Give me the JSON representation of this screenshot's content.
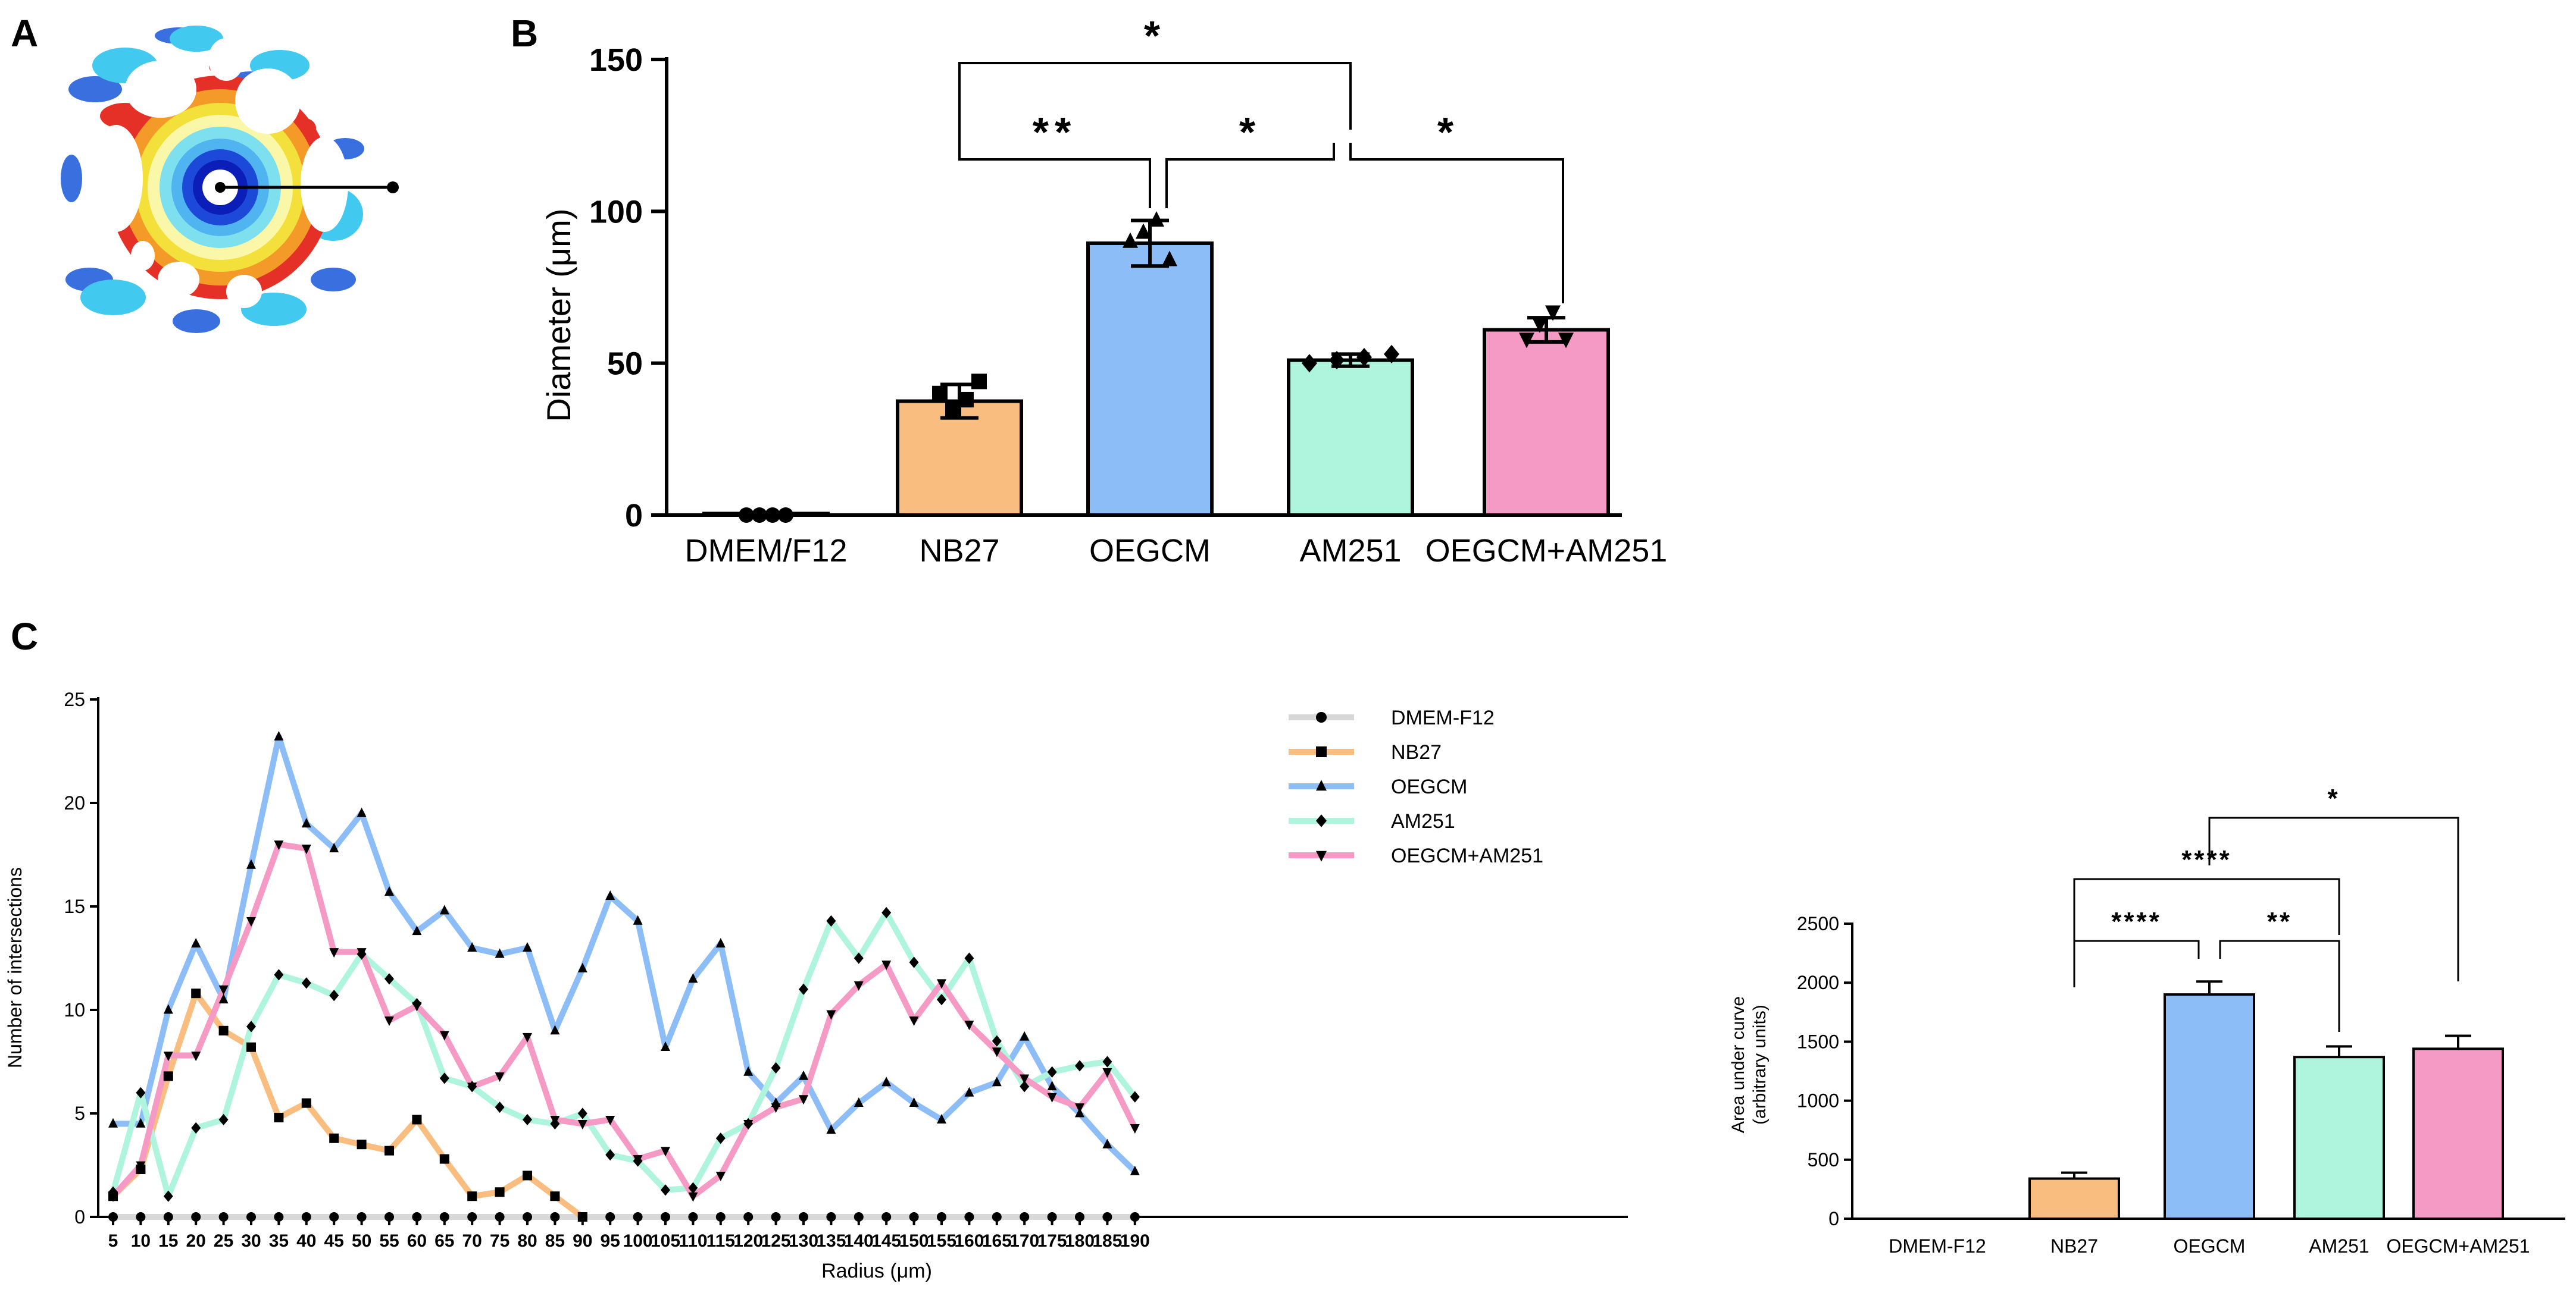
{
  "panels": {
    "a": "A",
    "b": "B",
    "c": "C"
  },
  "colors": {
    "dmem": "#d8d8d8",
    "nb27": "#f8bd7f",
    "oegcm": "#8dbdf6",
    "am251": "#aff4dc",
    "combo": "#f599c5"
  },
  "chart_data": [
    {
      "id": "panelB",
      "type": "bar",
      "title": "",
      "ylabel": "Diameter (μm)",
      "xlabel": "",
      "ylim": [
        0,
        150
      ],
      "yticks": [
        0,
        50,
        100,
        150
      ],
      "categories": [
        "DMEM/F12",
        "NB27",
        "OEGCM",
        "AM251",
        "OEGCM+AM251"
      ],
      "values": [
        0.5,
        37.5,
        89.5,
        51,
        61
      ],
      "errors": [
        0,
        5.5,
        7.5,
        2,
        4
      ],
      "points": [
        [
          0,
          0,
          0,
          0
        ],
        [
          40,
          35,
          38,
          44
        ],
        [
          90,
          93,
          97,
          84
        ],
        [
          50,
          51,
          52,
          53
        ],
        [
          58,
          63,
          67,
          58
        ]
      ],
      "significance": [
        {
          "from": 1,
          "to": 3,
          "label": "*"
        },
        {
          "from": 1,
          "to": 2,
          "label": "**"
        },
        {
          "from": 2,
          "to": 3,
          "label": "*"
        },
        {
          "from": 3,
          "to": 4,
          "label": "*"
        }
      ]
    },
    {
      "id": "panelC",
      "type": "line",
      "xlabel": "Radius (μm)",
      "ylabel": "Number of intersections",
      "ylim": [
        0,
        25
      ],
      "yticks": [
        0,
        5,
        10,
        15,
        20,
        25
      ],
      "x": [
        5,
        10,
        15,
        20,
        25,
        30,
        35,
        40,
        45,
        50,
        55,
        60,
        65,
        70,
        75,
        80,
        85,
        90,
        95,
        100,
        105,
        110,
        115,
        120,
        125,
        130,
        135,
        140,
        145,
        150,
        155,
        160,
        165,
        170,
        175,
        180,
        185,
        190
      ],
      "xtick_labels": [
        "5",
        "10",
        "15",
        "20",
        "25",
        "30",
        "35",
        "40",
        "45",
        "50",
        "55",
        "60",
        "65",
        "70",
        "75",
        "80",
        "85",
        "90",
        "95",
        "100",
        "105",
        "110",
        "115",
        "120",
        "125",
        "130",
        "135",
        "140",
        "145",
        "150",
        "155",
        "160",
        "165",
        "170",
        "175",
        "180",
        "185",
        "190"
      ],
      "series": [
        {
          "name": "DMEM-F12",
          "marker": "circle",
          "values": [
            0,
            0,
            0,
            0,
            0,
            0,
            0,
            0,
            0,
            0,
            0,
            0,
            0,
            0,
            0,
            0,
            0,
            0,
            0,
            0,
            0,
            0,
            0,
            0,
            0,
            0,
            0,
            0,
            0,
            0,
            0,
            0,
            0,
            0,
            0,
            0,
            0,
            0
          ]
        },
        {
          "name": "NB27",
          "marker": "square",
          "values": [
            1,
            2.3,
            6.8,
            10.8,
            9,
            8.2,
            4.8,
            5.5,
            3.8,
            3.5,
            3.2,
            4.7,
            2.8,
            1,
            1.2,
            2,
            1,
            0,
            0,
            0,
            0,
            0,
            0,
            0,
            0,
            0,
            0,
            0,
            0,
            0,
            0,
            0,
            0,
            0,
            0,
            0,
            0,
            0
          ]
        },
        {
          "name": "OEGCM",
          "marker": "triangle-up",
          "values": [
            4.5,
            4.5,
            10,
            13.2,
            10.5,
            17,
            23.2,
            19,
            17.8,
            19.5,
            15.7,
            13.8,
            14.8,
            13,
            12.7,
            13,
            9,
            12,
            15.5,
            14.3,
            8.2,
            11.5,
            13.2,
            7,
            5.5,
            6.8,
            4.2,
            5.5,
            6.5,
            5.5,
            4.7,
            6,
            6.5,
            8.7,
            6.3,
            5,
            3.5,
            2.2
          ]
        },
        {
          "name": "AM251",
          "marker": "diamond",
          "values": [
            1.2,
            6,
            1,
            4.3,
            4.7,
            9.2,
            11.7,
            11.3,
            10.7,
            12.7,
            11.5,
            10.3,
            6.7,
            6.3,
            5.3,
            4.7,
            4.5,
            5,
            3,
            2.7,
            1.3,
            1.4,
            3.8,
            4.5,
            7.2,
            11,
            14.3,
            12.5,
            14.7,
            12.3,
            10.5,
            12.5,
            8.5,
            6.3,
            7,
            7.3,
            7.5,
            5.8
          ]
        },
        {
          "name": "OEGCM+AM251",
          "marker": "triangle-down",
          "values": [
            1,
            2.5,
            7.8,
            7.8,
            11,
            14.3,
            18,
            17.8,
            12.8,
            12.8,
            9.5,
            10.2,
            8.8,
            6.3,
            6.8,
            8.7,
            4.7,
            4.5,
            4.7,
            2.8,
            3.2,
            1,
            2,
            4.5,
            5.3,
            5.7,
            9.8,
            11.2,
            12.2,
            9.5,
            11.3,
            9.3,
            8,
            6.7,
            5.8,
            5.3,
            7,
            4.3
          ]
        }
      ]
    },
    {
      "id": "panelC-inset",
      "type": "bar",
      "xlabel": "",
      "ylabel": "Area under curve",
      "ylabel2": "(arbitrary units)",
      "ylim": [
        0,
        2500
      ],
      "yticks": [
        0,
        500,
        1000,
        1500,
        2000,
        2500
      ],
      "categories": [
        "DMEM-F12",
        "NB27",
        "OEGCM",
        "AM251",
        "OEGCM+AM251"
      ],
      "values": [
        0,
        340,
        1900,
        1370,
        1440
      ],
      "errors": [
        0,
        50,
        110,
        90,
        110
      ],
      "significance": [
        {
          "from": 2,
          "to": 4,
          "label": "*"
        },
        {
          "from": 1,
          "to": 3,
          "label": "****"
        },
        {
          "from": 1,
          "to": 2,
          "label": "****"
        },
        {
          "from": 2,
          "to": 3,
          "label": "**"
        }
      ]
    }
  ]
}
